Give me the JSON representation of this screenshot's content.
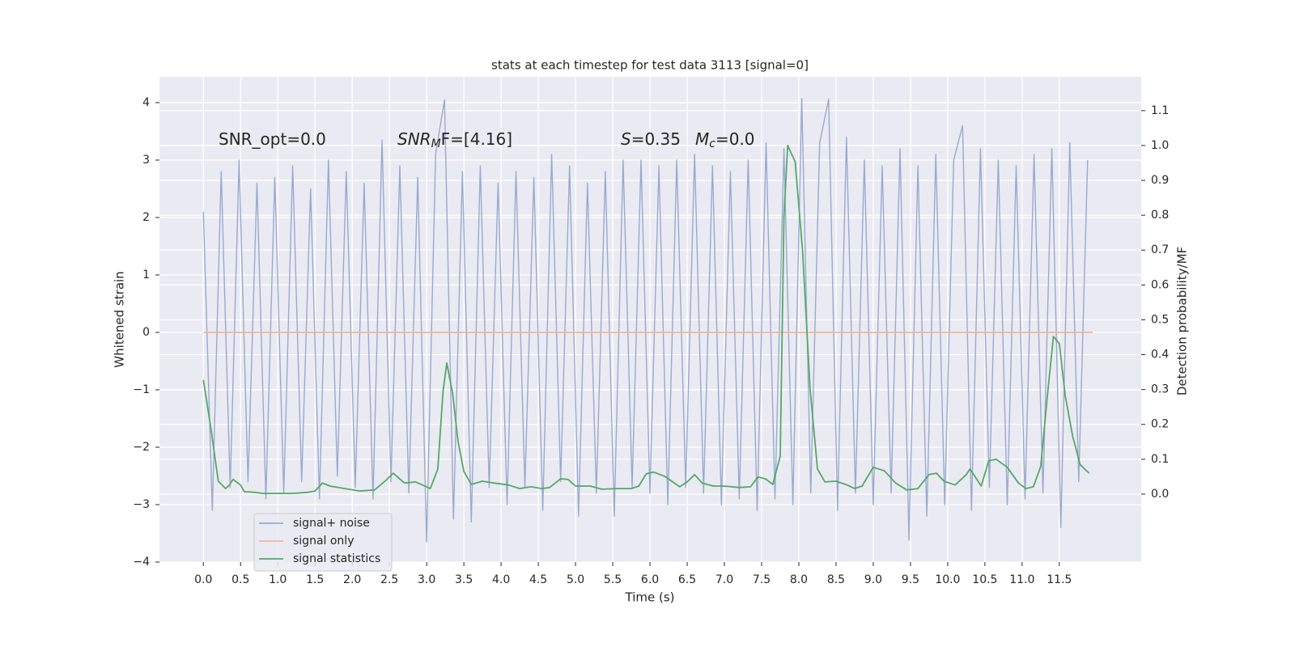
{
  "chart_data": {
    "type": "line",
    "title": "stats at each timestep for test data 3113 [signal=0]",
    "xlabel": "Time (s)",
    "ylabel": "Whitened strain",
    "y2label": "Detection probability/MF",
    "xlim": [
      -0.59,
      12.6
    ],
    "ylim": [
      -4,
      4.45
    ],
    "y2lim": [
      -0.195,
      1.197
    ],
    "xticks": [
      {
        "value": 0,
        "label": "0.0"
      },
      {
        "value": 0.5,
        "label": "0.5"
      },
      {
        "value": 1,
        "label": "1.0"
      },
      {
        "value": 1.5,
        "label": "1.5"
      },
      {
        "value": 2,
        "label": "2.0"
      },
      {
        "value": 2.5,
        "label": "2.5"
      },
      {
        "value": 3,
        "label": "3.0"
      },
      {
        "value": 3.5,
        "label": "3.5"
      },
      {
        "value": 4,
        "label": "4.0"
      },
      {
        "value": 4.5,
        "label": "4.5"
      },
      {
        "value": 5,
        "label": "5.0"
      },
      {
        "value": 5.5,
        "label": "5.5"
      },
      {
        "value": 6,
        "label": "6.0"
      },
      {
        "value": 6.5,
        "label": "6.5"
      },
      {
        "value": 7,
        "label": "7.0"
      },
      {
        "value": 7.5,
        "label": "7.5"
      },
      {
        "value": 8,
        "label": "8.0"
      },
      {
        "value": 8.5,
        "label": "8.5"
      },
      {
        "value": 9,
        "label": "9.0"
      },
      {
        "value": 9.5,
        "label": "9.5"
      },
      {
        "value": 10,
        "label": "10.0"
      },
      {
        "value": 10.5,
        "label": "10.5"
      },
      {
        "value": 11,
        "label": "11.0"
      },
      {
        "value": 11.5,
        "label": "11.5"
      }
    ],
    "yticks": [
      {
        "value": -4,
        "label": "−4"
      },
      {
        "value": -3,
        "label": "−3"
      },
      {
        "value": -2,
        "label": "−2"
      },
      {
        "value": -1,
        "label": "−1"
      },
      0,
      1,
      2,
      3,
      4
    ],
    "y2ticks": [
      {
        "value": 0,
        "label": "0.0"
      },
      {
        "value": 0.1,
        "label": "0.1"
      },
      {
        "value": 0.2,
        "label": "0.2"
      },
      {
        "value": 0.3,
        "label": "0.3"
      },
      {
        "value": 0.4,
        "label": "0.4"
      },
      {
        "value": 0.5,
        "label": "0.5"
      },
      {
        "value": 0.6,
        "label": "0.6"
      },
      {
        "value": 0.7,
        "label": "0.7"
      },
      {
        "value": 0.8,
        "label": "0.8"
      },
      {
        "value": 0.9,
        "label": "0.9"
      },
      {
        "value": 1,
        "label": "1.0"
      },
      {
        "value": 1.1,
        "label": "1.1"
      }
    ],
    "grid": true,
    "legend": "lower left",
    "annotations": [
      [
        {
          "text": "SNR_opt=0.0"
        }
      ],
      [
        {
          "text": "SNR",
          "style": "italic"
        },
        {
          "text": "M",
          "style": "italic-sub"
        },
        {
          "text": "F=[4.16]"
        }
      ],
      [
        {
          "text": "S",
          "style": "italic"
        },
        {
          "text": "=0.35"
        }
      ],
      [
        {
          "text": "M",
          "style": "italic"
        },
        {
          "text": "c",
          "style": "italic-sub"
        },
        {
          "text": "=0.0"
        }
      ]
    ],
    "series": [
      {
        "name": "signal+ noise",
        "color": "#99aacf",
        "axis": "y",
        "x": [
          0,
          0.12,
          0.24,
          0.36,
          0.48,
          0.6,
          0.72,
          0.84,
          0.96,
          1.08,
          1.2,
          1.32,
          1.44,
          1.56,
          1.68,
          1.8,
          1.92,
          2.04,
          2.16,
          2.28,
          2.4,
          2.52,
          2.64,
          2.76,
          2.88,
          3.0,
          3.12,
          3.24,
          3.36,
          3.48,
          3.6,
          3.72,
          3.84,
          3.96,
          4.08,
          4.2,
          4.32,
          4.44,
          4.56,
          4.68,
          4.8,
          4.92,
          5.04,
          5.16,
          5.28,
          5.4,
          5.52,
          5.64,
          5.76,
          5.88,
          6.0,
          6.12,
          6.24,
          6.36,
          6.48,
          6.6,
          6.72,
          6.84,
          6.96,
          7.08,
          7.2,
          7.32,
          7.44,
          7.56,
          7.68,
          7.8,
          7.92,
          8.04,
          8.16,
          8.28,
          8.4,
          8.52,
          8.64,
          8.76,
          8.88,
          9.0,
          9.12,
          9.24,
          9.36,
          9.48,
          9.6,
          9.72,
          9.84,
          9.96,
          10.08,
          10.2,
          10.32,
          10.44,
          10.56,
          10.68,
          10.8,
          10.92,
          11.04,
          11.16,
          11.28,
          11.4,
          11.52,
          11.64,
          11.76,
          11.88
        ],
        "values": [
          2.1,
          -3.1,
          2.8,
          -2.7,
          3.0,
          -2.6,
          2.6,
          -2.9,
          2.7,
          -2.8,
          2.9,
          -2.6,
          2.5,
          -2.9,
          3.0,
          -2.5,
          2.8,
          -2.7,
          2.6,
          -2.9,
          3.35,
          -2.6,
          2.9,
          -2.8,
          2.7,
          -3.65,
          3.1,
          4.05,
          -3.25,
          2.8,
          -3.3,
          2.9,
          -2.7,
          2.6,
          -3.0,
          2.8,
          -2.7,
          2.7,
          -3.1,
          3.1,
          -2.6,
          2.9,
          -3.2,
          2.6,
          -2.8,
          2.8,
          -3.2,
          3.0,
          -2.7,
          3.0,
          -2.8,
          2.9,
          -3.0,
          3.0,
          -2.7,
          3.1,
          -2.8,
          2.9,
          -3.0,
          2.8,
          -2.9,
          3.0,
          -3.1,
          3.3,
          -2.9,
          3.2,
          -3.0,
          4.07,
          -2.8,
          3.3,
          4.06,
          -3.1,
          3.4,
          -2.8,
          3.0,
          -3.0,
          2.9,
          -2.8,
          3.2,
          -3.62,
          2.9,
          -3.2,
          3.1,
          -3.0,
          3.0,
          3.6,
          -3.1,
          3.2,
          -2.7,
          3.0,
          -3.0,
          2.9,
          -2.9,
          3.1,
          -2.8,
          3.2,
          -3.4,
          3.3,
          -2.6,
          3.0
        ]
      },
      {
        "name": "signal only",
        "color": "#ecb89a",
        "axis": "y",
        "x": [
          0,
          11.95
        ],
        "values": [
          0,
          0
        ]
      },
      {
        "name": "signal statistics",
        "color": "#55a868",
        "axis": "y2",
        "x": [
          0,
          0.1,
          0.2,
          0.3,
          0.35,
          0.4,
          0.5,
          0.55,
          0.7,
          0.8,
          1.0,
          1.2,
          1.4,
          1.5,
          1.6,
          1.7,
          1.9,
          2.1,
          2.3,
          2.45,
          2.55,
          2.7,
          2.85,
          3.0,
          3.05,
          3.15,
          3.22,
          3.27,
          3.35,
          3.42,
          3.5,
          3.6,
          3.75,
          3.9,
          4.1,
          4.25,
          4.4,
          4.55,
          4.65,
          4.8,
          4.9,
          5.0,
          5.2,
          5.35,
          5.55,
          5.75,
          5.85,
          5.95,
          6.05,
          6.2,
          6.4,
          6.5,
          6.6,
          6.7,
          6.85,
          7.0,
          7.2,
          7.35,
          7.45,
          7.55,
          7.65,
          7.75,
          7.8,
          7.85,
          7.95,
          8.05,
          8.15,
          8.25,
          8.35,
          8.5,
          8.65,
          8.75,
          8.85,
          9.0,
          9.15,
          9.3,
          9.45,
          9.6,
          9.75,
          9.85,
          9.95,
          10.1,
          10.25,
          10.3,
          10.45,
          10.55,
          10.65,
          10.8,
          10.95,
          11.05,
          11.15,
          11.25,
          11.35,
          11.42,
          11.5,
          11.58,
          11.68,
          11.78,
          11.9
        ],
        "values": [
          0.327,
          0.19,
          0.037,
          0.016,
          0.026,
          0.042,
          0.026,
          0.007,
          0.005,
          0.002,
          0.002,
          0.002,
          0.005,
          0.009,
          0.032,
          0.023,
          0.016,
          0.009,
          0.012,
          0.039,
          0.06,
          0.032,
          0.035,
          0.021,
          0.016,
          0.072,
          0.295,
          0.376,
          0.288,
          0.153,
          0.065,
          0.028,
          0.037,
          0.032,
          0.026,
          0.016,
          0.021,
          0.016,
          0.019,
          0.044,
          0.042,
          0.023,
          0.023,
          0.014,
          0.016,
          0.016,
          0.023,
          0.058,
          0.063,
          0.051,
          0.021,
          0.035,
          0.056,
          0.032,
          0.023,
          0.023,
          0.019,
          0.021,
          0.049,
          0.044,
          0.028,
          0.109,
          0.798,
          1.0,
          0.954,
          0.698,
          0.304,
          0.072,
          0.035,
          0.037,
          0.026,
          0.016,
          0.023,
          0.077,
          0.067,
          0.032,
          0.012,
          0.016,
          0.056,
          0.06,
          0.037,
          0.026,
          0.056,
          0.072,
          0.023,
          0.095,
          0.1,
          0.077,
          0.032,
          0.016,
          0.021,
          0.079,
          0.304,
          0.452,
          0.432,
          0.281,
          0.165,
          0.084,
          0.06
        ]
      }
    ]
  }
}
